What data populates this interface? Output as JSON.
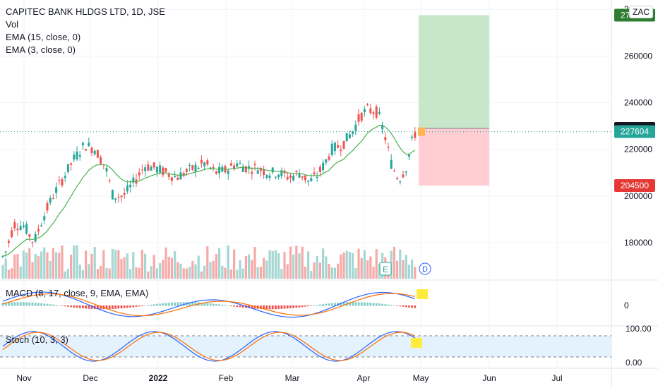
{
  "legend": {
    "title": "CAPITEC BANK HLDGS LTD, 1D, JSE",
    "vol": "Vol",
    "ema15": "EMA (15, close, 0)",
    "ema3": "EMA (3, close, 0)"
  },
  "currency_badge": "ZAC",
  "macd_label": "MACD (8, 17, close, 9, EMA, EMA)",
  "stoch_label": "Stoch (10, 3, 3)",
  "colors": {
    "up": "#26a69a",
    "down": "#ef5350",
    "ema15": "#4caf50",
    "macd": "#2962ff",
    "signal": "#ff6d00",
    "profit": "#c8e6c9",
    "loss": "#ffcdd2",
    "stoch_band": "#e3f2fd"
  },
  "chart_data": [
    {
      "type": "candlestick",
      "title": "CAPITEC BANK HLDGS LTD, 1D, JSE",
      "x_ticks": [
        "Nov",
        "Dec",
        "2022",
        "Feb",
        "Mar",
        "Apr",
        "May",
        "Jun",
        "Jul"
      ],
      "y_ticks": [
        180000,
        200000,
        220000,
        240000,
        260000,
        280000
      ],
      "ylim": [
        164000,
        284000
      ],
      "price_labels": {
        "target": "277500",
        "stop_target": "229000",
        "last": "227604",
        "stop": "204500"
      },
      "price_levels": {
        "target": 277500,
        "entry": 229000,
        "last": 227604,
        "stop": 204500
      },
      "series_names": [
        "Vol",
        "EMA (15, close, 0)",
        "EMA (3, close, 0)"
      ],
      "markers": [
        "E",
        "D"
      ]
    },
    {
      "type": "line",
      "title": "MACD (8, 17, close, 9, EMA, EMA)",
      "y_ticks": [
        0
      ]
    },
    {
      "type": "line",
      "title": "Stoch (10, 3, 3)",
      "y_ticks": [
        "100.00",
        "0.00"
      ],
      "bands": [
        80,
        20
      ]
    }
  ]
}
